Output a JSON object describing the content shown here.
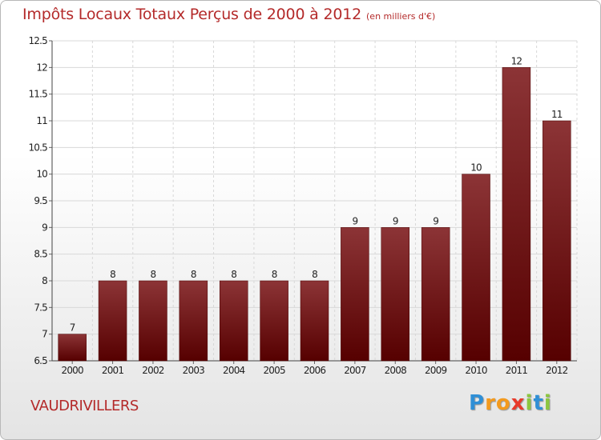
{
  "chart_data": {
    "type": "bar",
    "title": "Impôts Locaux Totaux Perçus de 2000 à 2012",
    "unit": "(en milliers d'€)",
    "categories": [
      "2000",
      "2001",
      "2002",
      "2003",
      "2004",
      "2005",
      "2006",
      "2007",
      "2008",
      "2009",
      "2010",
      "2011",
      "2012"
    ],
    "values": [
      7,
      8,
      8,
      8,
      8,
      8,
      8,
      9,
      9,
      9,
      10,
      12,
      11
    ],
    "value_labels": [
      "7",
      "8",
      "8",
      "8",
      "8",
      "8",
      "8",
      "9",
      "9",
      "9",
      "10",
      "12",
      "11"
    ],
    "ylim": [
      6.5,
      12.5
    ],
    "yticks": [
      "6.5",
      "7",
      "7.5",
      "8",
      "8.5",
      "9",
      "9.5",
      "10",
      "10.5",
      "11",
      "11.5",
      "12",
      "12.5"
    ],
    "grid": true,
    "bar_color": "#7a1a1a"
  },
  "footer": {
    "city": "VAUDRIVILLERS",
    "logo_letters": [
      "P",
      "r",
      "o",
      "x",
      "i",
      "t",
      "i"
    ],
    "logo_colors": [
      "#2f8fd6",
      "#f39a1e",
      "#f39a1e",
      "#e83a2b",
      "#8cc63f",
      "#2f8fd6",
      "#8cc63f"
    ]
  }
}
